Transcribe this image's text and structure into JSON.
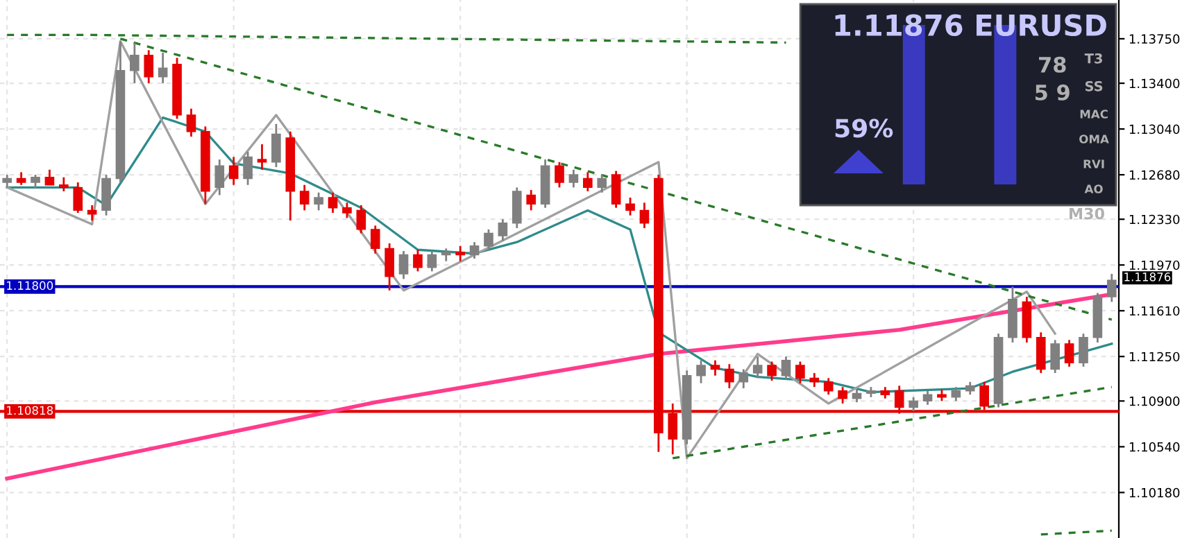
{
  "chart_data": {
    "type": "candlestick",
    "categories": [
      null,
      null,
      null,
      null,
      null,
      null,
      null,
      null,
      null,
      null,
      null,
      null,
      null,
      null,
      null,
      null,
      null,
      null,
      null,
      null,
      null,
      null,
      null,
      null,
      null,
      null,
      null,
      null,
      null,
      null,
      null,
      null,
      null,
      null,
      null,
      null,
      null,
      null,
      null,
      null,
      null,
      null,
      null,
      null,
      null,
      null,
      null,
      null,
      null,
      null,
      null,
      null,
      null,
      null,
      null,
      null,
      null,
      null,
      null,
      null,
      null,
      null,
      null,
      null,
      null,
      null,
      null,
      null,
      null,
      null,
      null,
      null,
      null,
      null,
      null,
      null,
      null,
      null,
      null
    ],
    "colors": [
      "#808080",
      "#e60000",
      "#808080",
      "#e60000",
      "#e60000",
      "#e60000",
      "#e60000",
      "#808080",
      "#808080",
      "#808080",
      "#e60000",
      "#808080",
      "#e60000",
      "#e60000",
      "#e60000",
      "#808080",
      "#e60000",
      "#808080",
      "#e60000",
      "#808080",
      "#e60000",
      "#e60000",
      "#808080",
      "#e60000",
      "#e60000",
      "#e60000",
      "#e60000",
      "#e60000",
      "#808080",
      "#e60000",
      "#808080",
      "#808080",
      "#e60000",
      "#808080",
      "#808080",
      "#808080",
      "#808080",
      "#e60000",
      "#808080",
      "#e60000",
      "#808080",
      "#e60000",
      "#808080",
      "#e60000",
      "#e60000",
      "#e60000",
      "#e60000",
      "#e60000",
      "#808080",
      "#808080",
      "#e60000",
      "#e60000",
      "#808080",
      "#808080",
      "#e60000",
      "#808080",
      "#e60000",
      "#e60000",
      "#e60000",
      "#e60000",
      "#808080",
      "#808080",
      "#e60000",
      "#e60000",
      "#808080",
      "#808080",
      "#e60000",
      "#808080",
      "#808080",
      "#e60000",
      "#808080",
      "#808080",
      "#e60000",
      "#e60000",
      "#808080",
      "#e60000",
      "#808080",
      "#808080",
      "#808080"
    ],
    "ohlc": [
      [
        1.1262,
        1.1268,
        1.1258,
        1.1265
      ],
      [
        1.1265,
        1.127,
        1.126,
        1.1262
      ],
      [
        1.1262,
        1.1268,
        1.1257,
        1.1266
      ],
      [
        1.1266,
        1.1272,
        1.126,
        1.126
      ],
      [
        1.126,
        1.1266,
        1.1255,
        1.1258
      ],
      [
        1.1258,
        1.1262,
        1.1238,
        1.124
      ],
      [
        1.124,
        1.1244,
        1.1232,
        1.1237
      ],
      [
        1.124,
        1.1268,
        1.1236,
        1.1265
      ],
      [
        1.1265,
        1.1373,
        1.1262,
        1.135
      ],
      [
        1.135,
        1.1372,
        1.134,
        1.1362
      ],
      [
        1.1362,
        1.1366,
        1.134,
        1.1345
      ],
      [
        1.1345,
        1.1364,
        1.134,
        1.1352
      ],
      [
        1.1355,
        1.136,
        1.1312,
        1.1315
      ],
      [
        1.1315,
        1.132,
        1.1298,
        1.1302
      ],
      [
        1.1302,
        1.1306,
        1.1245,
        1.1255
      ],
      [
        1.1258,
        1.128,
        1.1252,
        1.1275
      ],
      [
        1.1275,
        1.1282,
        1.126,
        1.1265
      ],
      [
        1.1265,
        1.1286,
        1.126,
        1.1282
      ],
      [
        1.128,
        1.1292,
        1.1272,
        1.1278
      ],
      [
        1.1278,
        1.1308,
        1.1274,
        1.13
      ],
      [
        1.1297,
        1.1302,
        1.1232,
        1.1255
      ],
      [
        1.1255,
        1.126,
        1.124,
        1.1245
      ],
      [
        1.1245,
        1.1254,
        1.124,
        1.125
      ],
      [
        1.125,
        1.1254,
        1.1238,
        1.1242
      ],
      [
        1.1242,
        1.1246,
        1.1234,
        1.1238
      ],
      [
        1.124,
        1.1244,
        1.1222,
        1.1225
      ],
      [
        1.1225,
        1.1228,
        1.1206,
        1.121
      ],
      [
        1.121,
        1.1214,
        1.1177,
        1.1188
      ],
      [
        1.119,
        1.1208,
        1.1186,
        1.1205
      ],
      [
        1.1205,
        1.1209,
        1.1192,
        1.1195
      ],
      [
        1.1195,
        1.1208,
        1.1192,
        1.1205
      ],
      [
        1.1205,
        1.121,
        1.12,
        1.1207
      ],
      [
        1.1207,
        1.1212,
        1.12,
        1.1205
      ],
      [
        1.1205,
        1.1215,
        1.1202,
        1.1212
      ],
      [
        1.1212,
        1.1225,
        1.1208,
        1.1222
      ],
      [
        1.122,
        1.1233,
        1.1216,
        1.123
      ],
      [
        1.123,
        1.1258,
        1.1226,
        1.1255
      ],
      [
        1.1252,
        1.1256,
        1.124,
        1.1245
      ],
      [
        1.1245,
        1.128,
        1.1242,
        1.1275
      ],
      [
        1.1275,
        1.1278,
        1.1258,
        1.1262
      ],
      [
        1.1262,
        1.1272,
        1.1258,
        1.1268
      ],
      [
        1.1265,
        1.127,
        1.1255,
        1.1258
      ],
      [
        1.1258,
        1.1268,
        1.1254,
        1.1265
      ],
      [
        1.1268,
        1.1271,
        1.1242,
        1.1245
      ],
      [
        1.1245,
        1.125,
        1.1236,
        1.124
      ],
      [
        1.124,
        1.1246,
        1.1226,
        1.123
      ],
      [
        1.1265,
        1.1268,
        1.105,
        1.1065
      ],
      [
        1.108,
        1.1088,
        1.1048,
        1.106
      ],
      [
        1.106,
        1.1114,
        1.1056,
        1.111
      ],
      [
        1.111,
        1.1122,
        1.1104,
        1.1118
      ],
      [
        1.1118,
        1.1122,
        1.111,
        1.1115
      ],
      [
        1.1115,
        1.1119,
        1.11,
        1.1105
      ],
      [
        1.1105,
        1.1115,
        1.11,
        1.1112
      ],
      [
        1.1112,
        1.1125,
        1.1108,
        1.1118
      ],
      [
        1.1118,
        1.1121,
        1.1106,
        1.111
      ],
      [
        1.111,
        1.1125,
        1.1107,
        1.1122
      ],
      [
        1.1118,
        1.1121,
        1.1104,
        1.1108
      ],
      [
        1.1108,
        1.1112,
        1.1101,
        1.1105
      ],
      [
        1.1105,
        1.1108,
        1.1095,
        1.1098
      ],
      [
        1.1098,
        1.1101,
        1.1088,
        1.1092
      ],
      [
        1.1092,
        1.1099,
        1.1089,
        1.1096
      ],
      [
        1.1096,
        1.1101,
        1.1093,
        1.1098
      ],
      [
        1.1098,
        1.1101,
        1.1092,
        1.1095
      ],
      [
        1.1098,
        1.1102,
        1.108,
        1.1085
      ],
      [
        1.1085,
        1.1093,
        1.1082,
        1.109
      ],
      [
        1.109,
        1.1098,
        1.1087,
        1.1095
      ],
      [
        1.1095,
        1.1099,
        1.109,
        1.1093
      ],
      [
        1.1093,
        1.1101,
        1.109,
        1.1098
      ],
      [
        1.1098,
        1.1105,
        1.1095,
        1.1102
      ],
      [
        1.1102,
        1.1105,
        1.1083,
        1.1086
      ],
      [
        1.1088,
        1.1143,
        1.1085,
        1.114
      ],
      [
        1.114,
        1.118,
        1.1136,
        1.117
      ],
      [
        1.1168,
        1.1172,
        1.1136,
        1.114
      ],
      [
        1.114,
        1.1144,
        1.1112,
        1.1115
      ],
      [
        1.1115,
        1.1138,
        1.1112,
        1.1135
      ],
      [
        1.1135,
        1.1138,
        1.1117,
        1.112
      ],
      [
        1.112,
        1.1143,
        1.1117,
        1.114
      ],
      [
        1.114,
        1.1175,
        1.1136,
        1.1172
      ],
      [
        1.1172,
        1.119,
        1.1168,
        1.1185
      ]
    ],
    "series": [
      {
        "type": "line",
        "color": "#ff3c8c",
        "values": [
          1.1029,
          null,
          null,
          null,
          null,
          null,
          null,
          null,
          null,
          null,
          null,
          null,
          null,
          null,
          null,
          null,
          null,
          null,
          null,
          null,
          null,
          null,
          null,
          null,
          null,
          null,
          1.1089,
          null,
          null,
          null,
          null,
          null,
          null,
          null,
          null,
          null,
          null,
          null,
          null,
          null,
          null,
          null,
          null,
          null,
          null,
          null,
          1.1127,
          null,
          null,
          null,
          null,
          null,
          null,
          null,
          null,
          null,
          null,
          null,
          null,
          null,
          null,
          null,
          null,
          1.1146,
          null,
          null,
          null,
          null,
          null,
          null,
          null,
          null,
          null,
          null,
          null,
          null,
          null,
          null,
          1.1174
        ]
      },
      {
        "type": "line",
        "color": "#2e8b8b",
        "values": [
          1.1258,
          null,
          null,
          null,
          null,
          1.1258,
          null,
          1.1244,
          null,
          null,
          null,
          1.1313,
          null,
          null,
          1.1302,
          null,
          1.1277,
          null,
          null,
          null,
          1.1269,
          null,
          null,
          null,
          null,
          1.1242,
          null,
          null,
          null,
          1.1209,
          null,
          null,
          null,
          1.1206,
          null,
          null,
          1.1215,
          null,
          null,
          null,
          null,
          1.124,
          null,
          null,
          1.1225,
          null,
          1.1144,
          null,
          null,
          null,
          1.1116,
          null,
          null,
          1.1109,
          null,
          null,
          null,
          null,
          1.1105,
          null,
          null,
          1.1097,
          null,
          null,
          null,
          null,
          null,
          null,
          1.11,
          null,
          null,
          1.1113,
          null,
          null,
          null,
          null,
          null,
          null,
          1.1135
        ]
      },
      {
        "type": "line",
        "color": "#a0a0a0",
        "values": [
          1.1258,
          null,
          null,
          null,
          null,
          null,
          1.1229,
          null,
          1.1373,
          null,
          null,
          null,
          null,
          null,
          1.1245,
          null,
          null,
          null,
          null,
          1.1315,
          null,
          null,
          null,
          null,
          null,
          null,
          null,
          null,
          1.1177,
          null,
          null,
          null,
          null,
          null,
          null,
          null,
          null,
          null,
          null,
          null,
          null,
          null,
          null,
          null,
          null,
          null,
          1.1278,
          null,
          1.1045,
          null,
          null,
          null,
          null,
          1.1127,
          null,
          null,
          null,
          null,
          1.1088,
          null,
          null,
          null,
          null,
          null,
          null,
          null,
          null,
          null,
          null,
          null,
          null,
          null,
          1.1176,
          null,
          1.1143,
          null,
          null,
          null,
          null
        ]
      },
      {
        "type": "line",
        "color": "#2a7a2a",
        "line_style": "dashed",
        "values": [
          1.1378,
          null,
          null,
          null,
          null,
          null,
          1.1378,
          null,
          null,
          null,
          null,
          null,
          null,
          null,
          null,
          null,
          null,
          null,
          null,
          null,
          null,
          null,
          null,
          null,
          null,
          null,
          null,
          null,
          null,
          null,
          null,
          null,
          null,
          null,
          null,
          null,
          null,
          null,
          null,
          null,
          null,
          null,
          null,
          null,
          null,
          null,
          null,
          null,
          null,
          null,
          null,
          null,
          null,
          null,
          null,
          1.1372,
          null,
          null,
          null,
          null,
          null,
          null,
          null,
          null,
          null,
          null,
          null,
          null,
          null,
          null,
          null,
          null,
          null,
          null,
          null,
          null,
          null,
          null,
          null
        ]
      },
      {
        "type": "line",
        "color": "#2a7a2a",
        "line_style": "dashed",
        "values": [
          null,
          null,
          null,
          null,
          null,
          null,
          null,
          null,
          1.1375,
          null,
          null,
          null,
          null,
          null,
          null,
          null,
          null,
          null,
          null,
          null,
          null,
          null,
          null,
          null,
          null,
          null,
          null,
          null,
          null,
          null,
          null,
          null,
          null,
          null,
          null,
          null,
          null,
          null,
          null,
          null,
          null,
          null,
          null,
          null,
          null,
          null,
          null,
          null,
          null,
          null,
          null,
          null,
          null,
          null,
          null,
          null,
          null,
          null,
          null,
          null,
          null,
          null,
          null,
          null,
          null,
          null,
          null,
          null,
          null,
          null,
          null,
          null,
          null,
          null,
          null,
          null,
          null,
          null,
          1.1154
        ]
      },
      {
        "type": "line",
        "color": "#2a7a2a",
        "line_style": "dashed",
        "values": [
          null,
          null,
          null,
          null,
          null,
          null,
          null,
          null,
          null,
          null,
          null,
          null,
          null,
          null,
          null,
          null,
          null,
          null,
          null,
          null,
          null,
          null,
          null,
          null,
          null,
          null,
          null,
          null,
          null,
          null,
          null,
          null,
          null,
          null,
          null,
          null,
          null,
          null,
          null,
          null,
          null,
          null,
          null,
          null,
          null,
          null,
          null,
          1.1045,
          null,
          null,
          null,
          null,
          null,
          null,
          null,
          null,
          null,
          null,
          null,
          null,
          null,
          null,
          null,
          null,
          null,
          null,
          null,
          null,
          null,
          null,
          null,
          null,
          null,
          null,
          null,
          null,
          null,
          null,
          1.1101
        ]
      },
      {
        "type": "line",
        "color": "#2a7a2a",
        "line_style": "dashed",
        "values": [
          null,
          null,
          null,
          null,
          null,
          null,
          null,
          null,
          null,
          null,
          null,
          null,
          null,
          null,
          null,
          null,
          null,
          null,
          null,
          null,
          null,
          null,
          null,
          null,
          null,
          null,
          null,
          null,
          null,
          null,
          null,
          null,
          null,
          null,
          null,
          null,
          null,
          null,
          null,
          null,
          null,
          null,
          null,
          null,
          null,
          null,
          null,
          null,
          null,
          null,
          null,
          null,
          null,
          null,
          null,
          null,
          null,
          null,
          null,
          null,
          null,
          null,
          null,
          null,
          null,
          null,
          null,
          null,
          null,
          null,
          null,
          null,
          null,
          1.0985,
          null,
          null,
          null,
          null,
          1.0988
        ]
      }
    ],
    "ref_lines": [
      {
        "axis": "y",
        "value": 1.118,
        "label": "1.11800",
        "color": "#0000c0"
      },
      {
        "axis": "y",
        "value": 1.10818,
        "label": "1.10818",
        "color": "#e00000"
      }
    ],
    "annotations": [
      "1.11876",
      "1.11876 EURUSD",
      "59%",
      "78",
      "5 9",
      "T3",
      "SS",
      "MAC",
      "OMA",
      "RVI",
      "AO",
      "M30"
    ],
    "ylim": [
      1.09822,
      1.14055
    ],
    "yticks": [
      {
        "value": 1.1375,
        "label": "1.13750"
      },
      {
        "value": 1.134,
        "label": "1.13400"
      },
      {
        "value": 1.1304,
        "label": "1.13040"
      },
      {
        "value": 1.1268,
        "label": "1.12680"
      },
      {
        "value": 1.1233,
        "label": "1.12330"
      },
      {
        "value": 1.1197,
        "label": "1.11970"
      },
      {
        "value": 1.1161,
        "label": "1.11610"
      },
      {
        "value": 1.1125,
        "label": "1.11250"
      },
      {
        "value": 1.109,
        "label": "1.10900"
      },
      {
        "value": 1.1054,
        "label": "1.10540"
      },
      {
        "value": 1.1018,
        "label": "1.10180"
      }
    ],
    "grid": true,
    "tick_labels": "y"
  }
}
